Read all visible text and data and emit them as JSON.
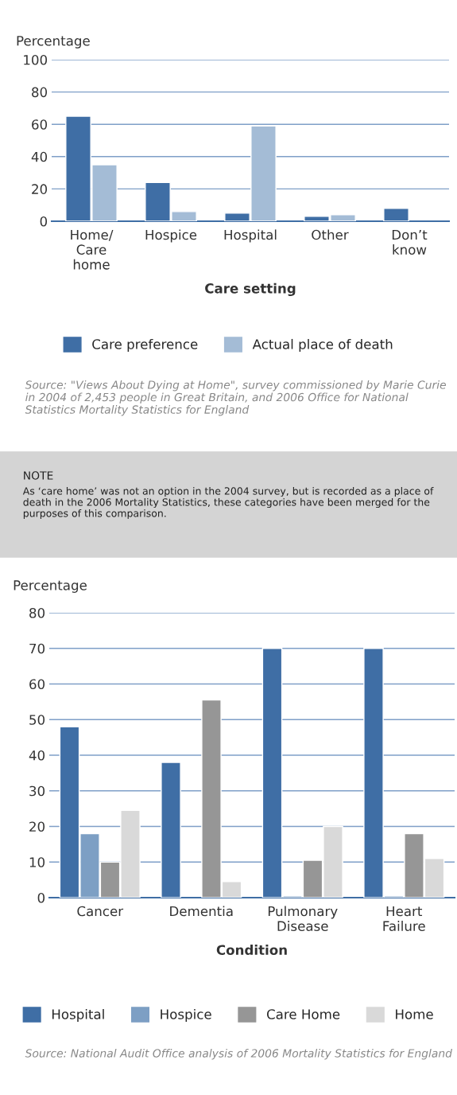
{
  "chart_data": [
    {
      "type": "bar",
      "ylabel": "Percentage",
      "xlabel": "Care setting",
      "categories": [
        "Home/\nCare\nhome",
        "Hospice",
        "Hospital",
        "Other",
        "Don’t\nknow"
      ],
      "series": [
        {
          "name": "Care preference",
          "color": "#3f6ea5",
          "values": [
            65,
            24,
            5,
            3,
            8
          ]
        },
        {
          "name": "Actual place of death",
          "color": "#a4bcd6",
          "values": [
            35,
            6,
            59,
            4,
            null
          ]
        }
      ],
      "ylim": [
        0,
        100
      ],
      "yticks": [
        0,
        20,
        40,
        60,
        80,
        100
      ],
      "grid": "y",
      "legend": "bottom",
      "annotations": [
        "Source: \"Views About Dying at Home\", survey commissioned by Marie Curie in 2004 of 2,453 people in Great Britain, and 2006 Office for National Statistics Mortality Statistics for England",
        "NOTE",
        "As ‘care home’ was not an option in the 2004 survey, but is recorded as a place of death in the 2006 Mortality Statistics, these categories have been merged for the purposes of this comparison."
      ]
    },
    {
      "type": "bar",
      "ylabel": "Percentage",
      "xlabel": "Condition",
      "categories": [
        "Cancer",
        "Dementia",
        "Pulmonary\nDisease",
        "Heart\nFailure"
      ],
      "series": [
        {
          "name": "Hospital",
          "color": "#3f6ea5",
          "values": [
            48,
            38,
            70,
            70
          ]
        },
        {
          "name": "Hospice",
          "color": "#7d9fc4",
          "values": [
            18,
            null,
            0.5,
            0.5
          ]
        },
        {
          "name": "Care Home",
          "color": "#969696",
          "values": [
            10,
            55.5,
            10.5,
            18
          ]
        },
        {
          "name": "Home",
          "color": "#d9d9d9",
          "values": [
            24.5,
            4.5,
            20,
            11
          ]
        }
      ],
      "ylim": [
        0,
        80
      ],
      "yticks": [
        0,
        10,
        20,
        30,
        40,
        50,
        60,
        70,
        80
      ],
      "grid": "y",
      "legend": "bottom",
      "annotations": [
        "Source: National Audit Office analysis of 2006 Mortality Statistics for England"
      ]
    }
  ]
}
